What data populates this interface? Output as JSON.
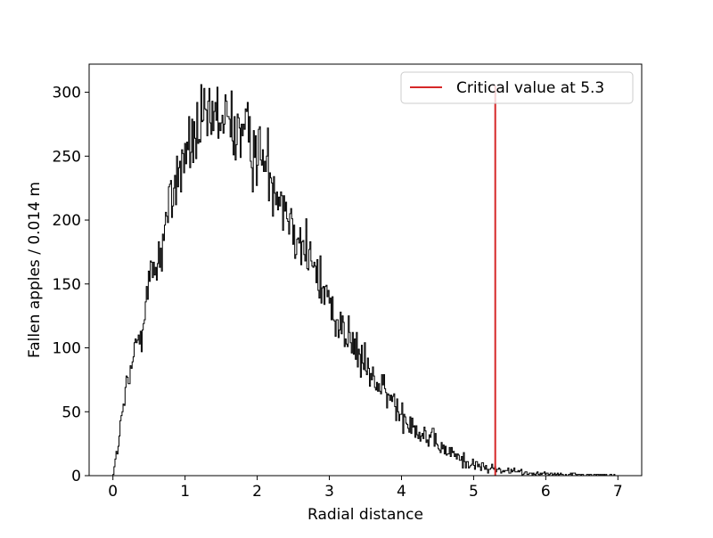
{
  "chart_data": {
    "type": "histogram",
    "title": "",
    "xlabel": "Radial distance",
    "ylabel": "Fallen apples / 0.014 m",
    "xlim": [
      -0.33,
      7.33
    ],
    "ylim": [
      0,
      322
    ],
    "xticks": [
      0,
      1,
      2,
      3,
      4,
      5,
      6,
      7
    ],
    "yticks": [
      0,
      50,
      100,
      150,
      200,
      250,
      300
    ],
    "bins": {
      "start": 0,
      "end": 7,
      "count": 500,
      "width": 0.014
    },
    "shape_points": [
      [
        0,
        0
      ],
      [
        0.05,
        15
      ],
      [
        0.1,
        35
      ],
      [
        0.15,
        55
      ],
      [
        0.2,
        70
      ],
      [
        0.25,
        80
      ],
      [
        0.3,
        95
      ],
      [
        0.35,
        110
      ],
      [
        0.4,
        120
      ],
      [
        0.45,
        135
      ],
      [
        0.5,
        150
      ],
      [
        0.6,
        165
      ],
      [
        0.7,
        185
      ],
      [
        0.8,
        215
      ],
      [
        0.9,
        235
      ],
      [
        1.0,
        250
      ],
      [
        1.1,
        260
      ],
      [
        1.2,
        270
      ],
      [
        1.3,
        275
      ],
      [
        1.4,
        278
      ],
      [
        1.5,
        278
      ],
      [
        1.6,
        276
      ],
      [
        1.7,
        272
      ],
      [
        1.8,
        268
      ],
      [
        1.9,
        262
      ],
      [
        2.0,
        255
      ],
      [
        2.1,
        245
      ],
      [
        2.2,
        235
      ],
      [
        2.3,
        225
      ],
      [
        2.4,
        210
      ],
      [
        2.5,
        198
      ],
      [
        2.6,
        185
      ],
      [
        2.7,
        172
      ],
      [
        2.8,
        160
      ],
      [
        2.9,
        148
      ],
      [
        3.0,
        136
      ],
      [
        3.1,
        125
      ],
      [
        3.2,
        114
      ],
      [
        3.3,
        104
      ],
      [
        3.4,
        94
      ],
      [
        3.5,
        85
      ],
      [
        3.6,
        77
      ],
      [
        3.7,
        69
      ],
      [
        3.8,
        62
      ],
      [
        3.9,
        56
      ],
      [
        4.0,
        50
      ],
      [
        4.1,
        44
      ],
      [
        4.2,
        38
      ],
      [
        4.3,
        33
      ],
      [
        4.4,
        28
      ],
      [
        4.5,
        24
      ],
      [
        4.6,
        20
      ],
      [
        4.7,
        17
      ],
      [
        4.8,
        14
      ],
      [
        4.9,
        11
      ],
      [
        5.0,
        9
      ],
      [
        5.1,
        7
      ],
      [
        5.2,
        6
      ],
      [
        5.3,
        5
      ],
      [
        5.4,
        4
      ],
      [
        5.6,
        3
      ],
      [
        5.8,
        2
      ],
      [
        6.0,
        1.5
      ],
      [
        6.3,
        1
      ],
      [
        6.6,
        0.5
      ],
      [
        7.0,
        0.3
      ]
    ],
    "vline": {
      "x": 5.3,
      "ymax": 305,
      "color": "#d62728",
      "label": "Critical value at 5.3"
    },
    "series": [
      {
        "name": "",
        "color": "#000000"
      }
    ],
    "legend": {
      "placement": "top-right",
      "entries": [
        "Critical value at 5.3"
      ]
    },
    "grid": false
  }
}
